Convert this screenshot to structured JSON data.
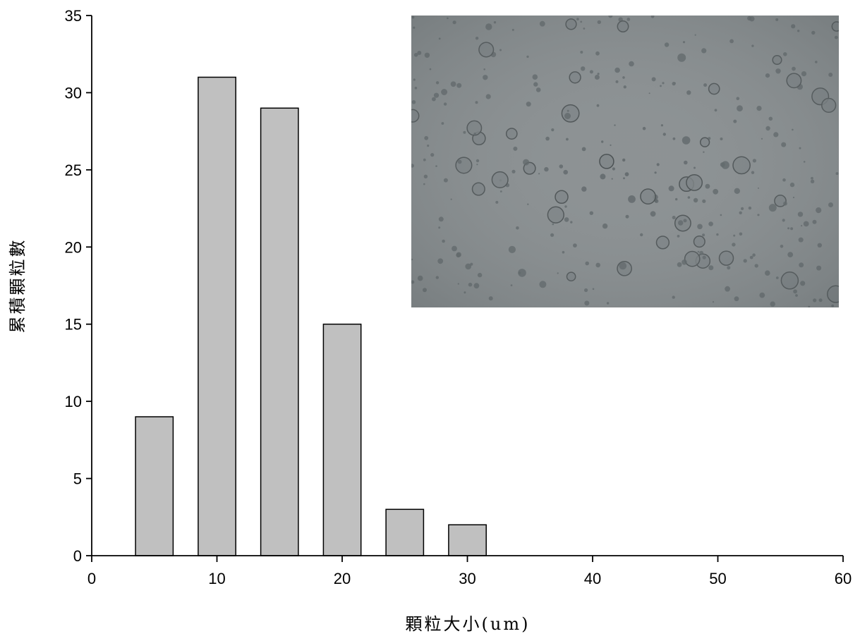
{
  "chart_data": {
    "type": "bar",
    "xlabel": "顆粒大小(um)",
    "ylabel": "累積顆粒數",
    "xlim": [
      0,
      60
    ],
    "ylim": [
      0,
      35
    ],
    "x_ticks": [
      0,
      10,
      20,
      30,
      40,
      50,
      60
    ],
    "y_ticks": [
      0,
      5,
      10,
      15,
      20,
      25,
      30,
      35
    ],
    "bar_width": 3,
    "series": [
      {
        "x": [
          5,
          10,
          15,
          20,
          25,
          30
        ],
        "values": [
          9,
          31,
          29,
          15,
          3,
          2
        ],
        "color": "#c0c0c0"
      }
    ],
    "grid": false,
    "legend": "none",
    "inset": {
      "kind": "microscope-photo",
      "placement": "top-right",
      "background": "#8d9294"
    }
  }
}
